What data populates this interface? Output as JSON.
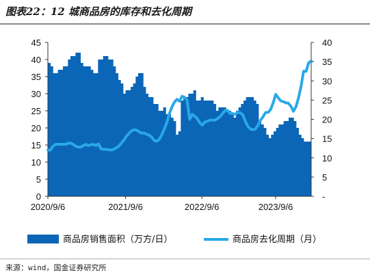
{
  "header": {
    "title": "图表22：12 城商品房的库存和去化周期"
  },
  "footer": {
    "source": "来源：wind，国金证券研究所"
  },
  "colors": {
    "bar": "#0b66b7",
    "line": "#29a8e8"
  },
  "chart_data": {
    "type": "bar+line",
    "x_tick_labels": [
      "2020/9/6",
      "2021/9/6",
      "2022/9/6",
      "2023/9/6"
    ],
    "left_axis": {
      "ylim": [
        0,
        45
      ],
      "ticks": [
        "0",
        "5",
        "10",
        "15",
        "20",
        "25",
        "30",
        "35",
        "40",
        "45"
      ]
    },
    "right_axis": {
      "ylim": [
        0,
        40
      ],
      "ticks": [
        "-",
        "5",
        "10",
        "15",
        "20",
        "25",
        "30",
        "35",
        "40"
      ]
    },
    "series": [
      {
        "name": "商品房销售面积（万方/日）",
        "type": "bar",
        "axis": "left",
        "values": [
          39,
          38,
          36,
          36,
          37,
          37,
          38,
          38,
          40,
          41,
          41,
          42,
          42,
          39,
          38,
          38,
          38,
          37,
          36,
          36,
          40,
          40,
          41,
          41,
          40,
          40,
          38,
          36,
          34,
          33,
          30,
          31,
          31,
          32,
          33,
          35,
          36,
          36,
          32,
          30,
          29,
          29,
          27,
          27,
          25,
          25,
          26,
          24,
          24,
          23,
          22,
          18,
          19,
          28,
          29,
          29,
          30,
          30,
          31,
          28,
          28,
          29,
          28,
          28,
          28,
          28,
          27,
          25,
          26,
          26,
          26,
          25,
          25,
          24,
          23,
          25,
          26,
          27,
          28,
          29,
          29,
          29,
          28,
          27,
          22,
          21,
          20,
          18,
          17,
          18,
          19,
          20,
          21,
          21,
          22,
          22,
          23,
          23,
          22,
          20,
          18,
          17,
          16,
          16,
          16
        ]
      },
      {
        "name": "商品房去化周期（月）",
        "type": "line",
        "axis": "right",
        "values": [
          12,
          12,
          13,
          13.5,
          13.5,
          13.5,
          13.5,
          13.5,
          13.8,
          13.8,
          13.5,
          13,
          12.8,
          12.8,
          13.2,
          13.5,
          13.2,
          13.4,
          13.5,
          13.2,
          13.6,
          12.3,
          12.2,
          12.2,
          12.1,
          12,
          12.2,
          12.6,
          13,
          13.8,
          14.6,
          15.6,
          16.3,
          17,
          17.3,
          17.2,
          16.8,
          16.4,
          16.5,
          16.1,
          15.9,
          15.4,
          14.5,
          14.3,
          14.8,
          16,
          17.5,
          19.2,
          21.5,
          23.2,
          24.5,
          25.2,
          24.7,
          26,
          25.7,
          25,
          20,
          21.3,
          20.8,
          20.2,
          19.1,
          18.5,
          19.3,
          19.5,
          19.8,
          19.8,
          19.8,
          20.2,
          20.7,
          21.5,
          22.3,
          22.3,
          21.5,
          21.5,
          21.3,
          21.8,
          21.7,
          21.2,
          19.5,
          18.2,
          17.5,
          17.3,
          17.5,
          18.5,
          19.8,
          20.7,
          21.8,
          21.8,
          22.6,
          24.3,
          26.5,
          25.6,
          24.8,
          24.6,
          24.3,
          24.2,
          23.4,
          22.1,
          23.3,
          25.6,
          28.6,
          32.5,
          32.5,
          34.7,
          35.2
        ]
      }
    ],
    "legend_placement": "bottom"
  }
}
